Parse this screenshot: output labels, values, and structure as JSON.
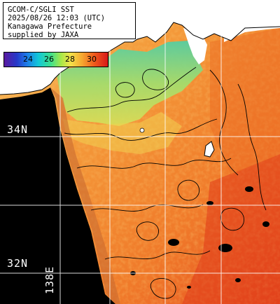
{
  "header": {
    "line1": "GCOM-C/SGLI SST",
    "line2": "2025/08/26 12:03 (UTC)",
    "line3": "Kanagawa Prefecture",
    "line4": "supplied by JAXA"
  },
  "legend": {
    "ticks": [
      "24",
      "26",
      "28",
      "30"
    ],
    "colors": [
      "#5a1aa0",
      "#2638c8",
      "#1e7ce8",
      "#12c8d8",
      "#3ee08c",
      "#a8e848",
      "#f4e24a",
      "#f6a830",
      "#ef5a1c",
      "#d81818"
    ]
  },
  "grid": {
    "lat_labels": [
      "34N",
      "32N"
    ],
    "lon_labels": [
      "138E"
    ]
  },
  "colors": {
    "land": "#ffffff",
    "no_data": "#000000",
    "cool_water": "#7ee08a",
    "warm_water": "#f28c34",
    "hot_water": "#e8481e",
    "contour": "#000000"
  }
}
